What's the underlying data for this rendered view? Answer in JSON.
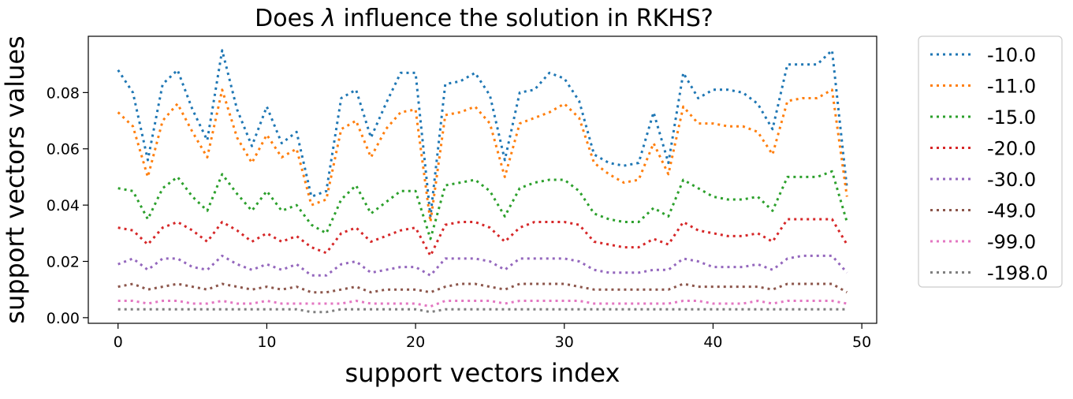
{
  "chart_data": {
    "type": "line",
    "title_pre": "Does ",
    "title_lambda": "λ",
    "title_post": " influence the solution in RKHS?",
    "xlabel": "support vectors index",
    "ylabel": "support vectors values",
    "xlim": [
      -2,
      51
    ],
    "ylim": [
      -0.002,
      0.1
    ],
    "xticks": [
      0,
      10,
      20,
      30,
      40,
      50
    ],
    "xtick_labels": [
      "0",
      "10",
      "20",
      "30",
      "40",
      "50"
    ],
    "yticks": [
      0.0,
      0.02,
      0.04,
      0.06,
      0.08
    ],
    "ytick_labels": [
      "0.00",
      "0.02",
      "0.04",
      "0.06",
      "0.08"
    ],
    "grid": false,
    "legend_position": "outside-right",
    "line_style": "dotted",
    "series": [
      {
        "name": "-10.0",
        "color": "#1f77b4",
        "x": [
          0,
          1,
          2,
          3,
          4,
          5,
          6,
          7,
          8,
          9,
          10,
          11,
          12,
          13,
          14,
          15,
          16,
          17,
          18,
          19,
          20,
          21,
          22,
          23,
          24,
          25,
          26,
          27,
          28,
          29,
          30,
          31,
          32,
          33,
          34,
          35,
          36,
          37,
          38,
          39,
          40,
          41,
          42,
          43,
          44,
          45,
          46,
          47,
          48,
          49
        ],
        "values": [
          0.088,
          0.08,
          0.056,
          0.083,
          0.088,
          0.074,
          0.063,
          0.095,
          0.074,
          0.061,
          0.075,
          0.062,
          0.066,
          0.043,
          0.045,
          0.078,
          0.081,
          0.064,
          0.076,
          0.087,
          0.087,
          0.036,
          0.083,
          0.084,
          0.087,
          0.079,
          0.056,
          0.08,
          0.081,
          0.087,
          0.085,
          0.077,
          0.058,
          0.055,
          0.054,
          0.055,
          0.073,
          0.055,
          0.087,
          0.078,
          0.081,
          0.081,
          0.08,
          0.076,
          0.067,
          0.09,
          0.09,
          0.09,
          0.095,
          0.046
        ]
      },
      {
        "name": "-11.0",
        "color": "#ff7f0e",
        "x": [
          0,
          1,
          2,
          3,
          4,
          5,
          6,
          7,
          8,
          9,
          10,
          11,
          12,
          13,
          14,
          15,
          16,
          17,
          18,
          19,
          20,
          21,
          22,
          23,
          24,
          25,
          26,
          27,
          28,
          29,
          30,
          31,
          32,
          33,
          34,
          35,
          36,
          37,
          38,
          39,
          40,
          41,
          42,
          43,
          44,
          45,
          46,
          47,
          48,
          49
        ],
        "values": [
          0.073,
          0.068,
          0.05,
          0.07,
          0.076,
          0.066,
          0.057,
          0.081,
          0.064,
          0.055,
          0.065,
          0.057,
          0.06,
          0.04,
          0.042,
          0.067,
          0.07,
          0.057,
          0.067,
          0.073,
          0.074,
          0.034,
          0.072,
          0.073,
          0.075,
          0.069,
          0.05,
          0.069,
          0.071,
          0.073,
          0.076,
          0.071,
          0.055,
          0.051,
          0.048,
          0.049,
          0.062,
          0.051,
          0.075,
          0.069,
          0.069,
          0.068,
          0.068,
          0.066,
          0.058,
          0.077,
          0.078,
          0.078,
          0.081,
          0.043
        ]
      },
      {
        "name": "-15.0",
        "color": "#2ca02c",
        "x": [
          0,
          1,
          2,
          3,
          4,
          5,
          6,
          7,
          8,
          9,
          10,
          11,
          12,
          13,
          14,
          15,
          16,
          17,
          18,
          19,
          20,
          21,
          22,
          23,
          24,
          25,
          26,
          27,
          28,
          29,
          30,
          31,
          32,
          33,
          34,
          35,
          36,
          37,
          38,
          39,
          40,
          41,
          42,
          43,
          44,
          45,
          46,
          47,
          48,
          49
        ],
        "values": [
          0.046,
          0.045,
          0.035,
          0.046,
          0.05,
          0.043,
          0.038,
          0.051,
          0.044,
          0.038,
          0.045,
          0.038,
          0.04,
          0.033,
          0.03,
          0.042,
          0.047,
          0.037,
          0.041,
          0.045,
          0.045,
          0.028,
          0.047,
          0.048,
          0.049,
          0.045,
          0.036,
          0.046,
          0.048,
          0.049,
          0.049,
          0.045,
          0.037,
          0.035,
          0.034,
          0.034,
          0.039,
          0.036,
          0.049,
          0.046,
          0.043,
          0.042,
          0.042,
          0.043,
          0.038,
          0.05,
          0.05,
          0.05,
          0.052,
          0.034
        ]
      },
      {
        "name": "-20.0",
        "color": "#d62728",
        "x": [
          0,
          1,
          2,
          3,
          4,
          5,
          6,
          7,
          8,
          9,
          10,
          11,
          12,
          13,
          14,
          15,
          16,
          17,
          18,
          19,
          20,
          21,
          22,
          23,
          24,
          25,
          26,
          27,
          28,
          29,
          30,
          31,
          32,
          33,
          34,
          35,
          36,
          37,
          38,
          39,
          40,
          41,
          42,
          43,
          44,
          45,
          46,
          47,
          48,
          49
        ],
        "values": [
          0.032,
          0.031,
          0.026,
          0.032,
          0.034,
          0.031,
          0.027,
          0.034,
          0.031,
          0.027,
          0.03,
          0.027,
          0.029,
          0.025,
          0.023,
          0.03,
          0.032,
          0.027,
          0.029,
          0.031,
          0.032,
          0.022,
          0.033,
          0.034,
          0.034,
          0.032,
          0.027,
          0.032,
          0.034,
          0.034,
          0.034,
          0.033,
          0.027,
          0.026,
          0.025,
          0.025,
          0.028,
          0.026,
          0.034,
          0.031,
          0.03,
          0.029,
          0.029,
          0.03,
          0.027,
          0.035,
          0.035,
          0.035,
          0.035,
          0.026
        ]
      },
      {
        "name": "-30.0",
        "color": "#9467bd",
        "x": [
          0,
          1,
          2,
          3,
          4,
          5,
          6,
          7,
          8,
          9,
          10,
          11,
          12,
          13,
          14,
          15,
          16,
          17,
          18,
          19,
          20,
          21,
          22,
          23,
          24,
          25,
          26,
          27,
          28,
          29,
          30,
          31,
          32,
          33,
          34,
          35,
          36,
          37,
          38,
          39,
          40,
          41,
          42,
          43,
          44,
          45,
          46,
          47,
          48,
          49
        ],
        "values": [
          0.019,
          0.021,
          0.017,
          0.021,
          0.021,
          0.018,
          0.017,
          0.022,
          0.019,
          0.017,
          0.019,
          0.017,
          0.019,
          0.015,
          0.015,
          0.019,
          0.02,
          0.016,
          0.017,
          0.018,
          0.018,
          0.015,
          0.021,
          0.021,
          0.021,
          0.02,
          0.017,
          0.021,
          0.021,
          0.021,
          0.021,
          0.02,
          0.017,
          0.016,
          0.016,
          0.016,
          0.017,
          0.017,
          0.021,
          0.02,
          0.018,
          0.018,
          0.018,
          0.019,
          0.017,
          0.021,
          0.022,
          0.022,
          0.022,
          0.016
        ]
      },
      {
        "name": "-49.0",
        "color": "#8c564b",
        "x": [
          0,
          1,
          2,
          3,
          4,
          5,
          6,
          7,
          8,
          9,
          10,
          11,
          12,
          13,
          14,
          15,
          16,
          17,
          18,
          19,
          20,
          21,
          22,
          23,
          24,
          25,
          26,
          27,
          28,
          29,
          30,
          31,
          32,
          33,
          34,
          35,
          36,
          37,
          38,
          39,
          40,
          41,
          42,
          43,
          44,
          45,
          46,
          47,
          48,
          49
        ],
        "values": [
          0.011,
          0.012,
          0.01,
          0.011,
          0.012,
          0.011,
          0.01,
          0.012,
          0.011,
          0.01,
          0.011,
          0.01,
          0.011,
          0.009,
          0.009,
          0.01,
          0.011,
          0.009,
          0.01,
          0.01,
          0.01,
          0.009,
          0.011,
          0.012,
          0.012,
          0.011,
          0.01,
          0.012,
          0.012,
          0.012,
          0.012,
          0.011,
          0.01,
          0.01,
          0.01,
          0.01,
          0.01,
          0.01,
          0.012,
          0.011,
          0.011,
          0.011,
          0.011,
          0.011,
          0.01,
          0.012,
          0.012,
          0.012,
          0.012,
          0.009
        ]
      },
      {
        "name": "-99.0",
        "color": "#e377c2",
        "x": [
          0,
          1,
          2,
          3,
          4,
          5,
          6,
          7,
          8,
          9,
          10,
          11,
          12,
          13,
          14,
          15,
          16,
          17,
          18,
          19,
          20,
          21,
          22,
          23,
          24,
          25,
          26,
          27,
          28,
          29,
          30,
          31,
          32,
          33,
          34,
          35,
          36,
          37,
          38,
          39,
          40,
          41,
          42,
          43,
          44,
          45,
          46,
          47,
          48,
          49
        ],
        "values": [
          0.006,
          0.006,
          0.005,
          0.006,
          0.006,
          0.005,
          0.005,
          0.006,
          0.005,
          0.005,
          0.006,
          0.005,
          0.005,
          0.005,
          0.005,
          0.005,
          0.006,
          0.005,
          0.005,
          0.005,
          0.005,
          0.004,
          0.006,
          0.006,
          0.006,
          0.006,
          0.005,
          0.006,
          0.006,
          0.006,
          0.006,
          0.006,
          0.005,
          0.005,
          0.005,
          0.005,
          0.005,
          0.005,
          0.006,
          0.006,
          0.005,
          0.005,
          0.005,
          0.006,
          0.005,
          0.006,
          0.006,
          0.006,
          0.006,
          0.005
        ]
      },
      {
        "name": "-198.0",
        "color": "#7f7f7f",
        "x": [
          0,
          1,
          2,
          3,
          4,
          5,
          6,
          7,
          8,
          9,
          10,
          11,
          12,
          13,
          14,
          15,
          16,
          17,
          18,
          19,
          20,
          21,
          22,
          23,
          24,
          25,
          26,
          27,
          28,
          29,
          30,
          31,
          32,
          33,
          34,
          35,
          36,
          37,
          38,
          39,
          40,
          41,
          42,
          43,
          44,
          45,
          46,
          47,
          48,
          49
        ],
        "values": [
          0.003,
          0.003,
          0.003,
          0.003,
          0.003,
          0.003,
          0.003,
          0.003,
          0.003,
          0.003,
          0.003,
          0.003,
          0.003,
          0.002,
          0.002,
          0.003,
          0.003,
          0.003,
          0.003,
          0.003,
          0.003,
          0.002,
          0.003,
          0.003,
          0.003,
          0.003,
          0.003,
          0.003,
          0.003,
          0.003,
          0.003,
          0.003,
          0.003,
          0.003,
          0.003,
          0.003,
          0.003,
          0.003,
          0.003,
          0.003,
          0.003,
          0.003,
          0.003,
          0.003,
          0.003,
          0.003,
          0.003,
          0.003,
          0.003,
          0.003
        ]
      }
    ]
  }
}
